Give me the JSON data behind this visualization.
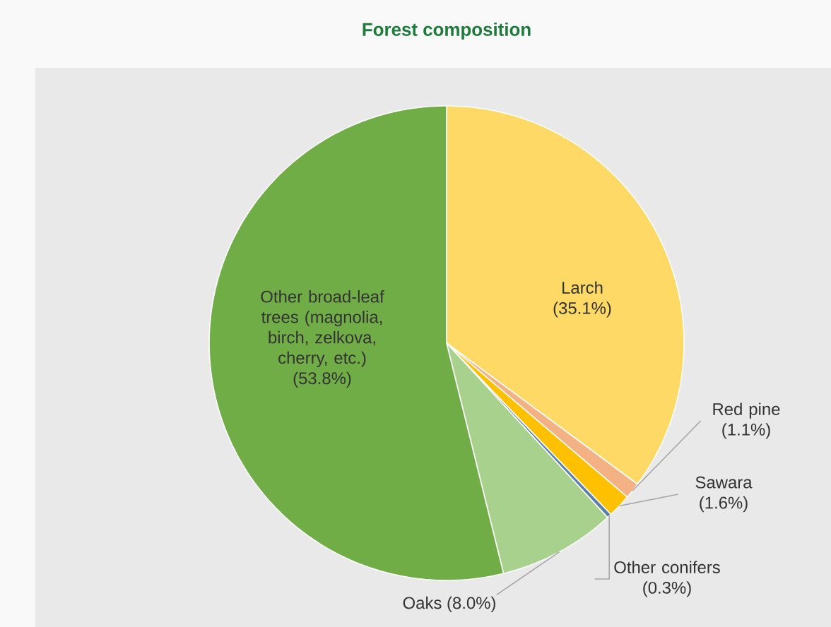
{
  "chart_data": {
    "type": "pie",
    "title": "Forest composition",
    "categories": [
      "Larch",
      "Red pine",
      "Sawara",
      "Other conifers",
      "Oaks",
      "Other broad-leaf trees (magnolia, birch, zelkova, cherry, etc.)"
    ],
    "values": [
      35.1,
      1.1,
      1.6,
      0.3,
      8.0,
      53.8
    ],
    "value_labels": [
      "(35.1%)",
      "(1.1%)",
      "(1.6%)",
      "(0.3%)",
      "(8.0%)",
      "(53.8%)"
    ],
    "colors": [
      "#ffd966",
      "#f4b183",
      "#ffc000",
      "#5b7fa6",
      "#a9d18e",
      "#70ad47"
    ]
  }
}
